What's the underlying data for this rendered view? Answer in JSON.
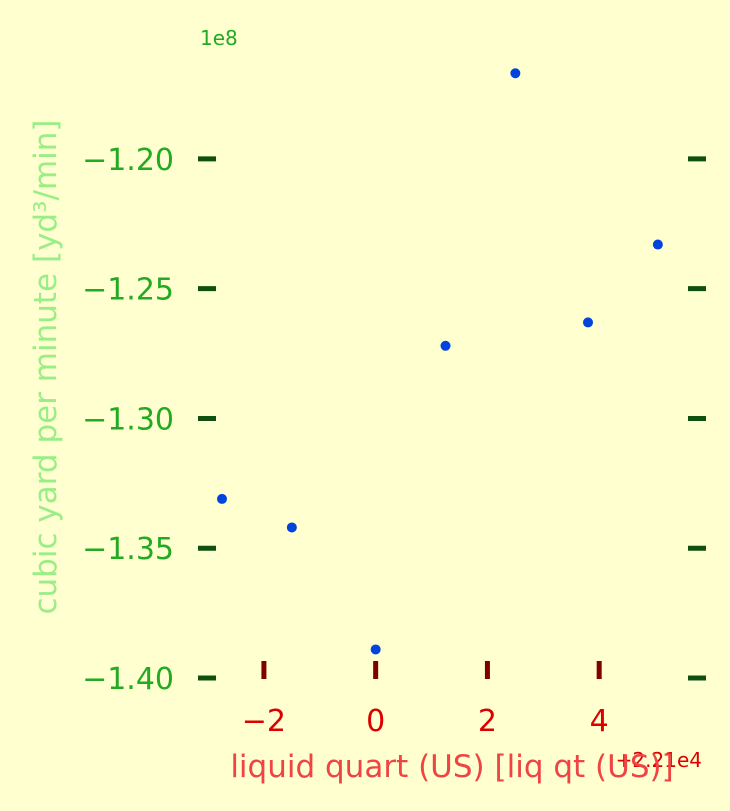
{
  "chart_data": {
    "type": "scatter",
    "title": "",
    "xlabel": "liquid quart (US) [liq qt (US)]",
    "ylabel": "cubic yard per minute [yd³/min]",
    "x_offset_label": "+2.21e4",
    "y_offset_label": "1e8",
    "xlim": [
      22097.25,
      22105.5
    ],
    "ylim": [
      -140000000,
      -118000000
    ],
    "x_ticks": [
      22098,
      22100,
      22102,
      22104
    ],
    "x_tick_labels": [
      "−2",
      "0",
      "2",
      "4"
    ],
    "y_ticks": [
      -140000000,
      -135000000,
      -130000000,
      -125000000,
      -120000000
    ],
    "y_tick_labels": [
      "−1.40",
      "−1.35",
      "−1.30",
      "−1.25",
      "−1.20"
    ],
    "grid": false,
    "series": [
      {
        "marker_color": "#0044dd",
        "x": [
          22097.25,
          22098.5,
          22100.0,
          22101.25,
          22102.5,
          22103.8,
          22105.05
        ],
        "y": [
          -133100000,
          -134200000,
          -138900000,
          -127200000,
          -116700000,
          -126300000,
          -123300000
        ]
      }
    ],
    "colors": {
      "background": "#ffffd0",
      "y_tick_mark": "#0f4f0f",
      "x_tick_mark": "#800000",
      "y_tick_label": "#22aa22",
      "x_tick_label": "#dd0000",
      "ylabel": "#99ee88",
      "xlabel": "#ee4444"
    }
  }
}
